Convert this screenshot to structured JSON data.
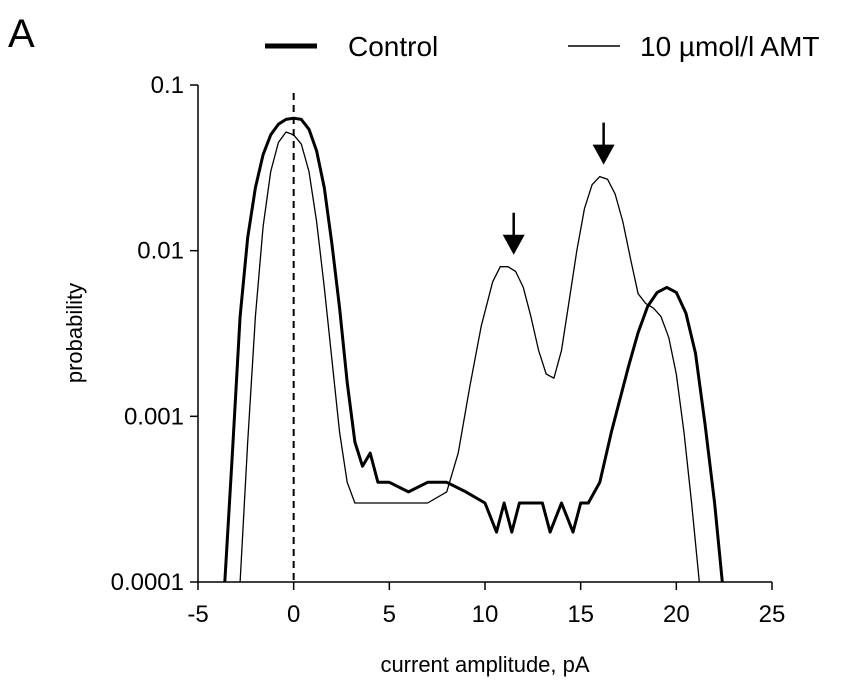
{
  "panel_label": "A",
  "chart_data": {
    "type": "line",
    "title": "",
    "xlabel": "current amplitude, pA",
    "ylabel": "probability",
    "xlim": [
      -5,
      25
    ],
    "ylim": [
      0.0001,
      0.1
    ],
    "y_scale": "log",
    "x_ticks": [
      -5,
      0,
      5,
      10,
      15,
      20,
      25
    ],
    "x_tick_labels": [
      "-5",
      "0",
      "5",
      "10",
      "15",
      "20",
      "25"
    ],
    "y_ticks": [
      0.0001,
      0.001,
      0.01,
      0.1
    ],
    "y_tick_labels": [
      "0.0001",
      "0.001",
      "0.01",
      "0.1"
    ],
    "grid": false,
    "legend_position": "top",
    "zero_line_x": 0,
    "arrows_at_x": [
      11.5,
      16.2
    ],
    "series": [
      {
        "name": "Control",
        "style": "thick",
        "color": "#000000",
        "x": [
          -3.6,
          -3.2,
          -2.8,
          -2.4,
          -2.0,
          -1.6,
          -1.2,
          -0.8,
          -0.4,
          0.0,
          0.4,
          0.8,
          1.2,
          1.6,
          2.0,
          2.4,
          2.8,
          3.2,
          3.6,
          4.0,
          4.4,
          5.0,
          6.0,
          7.0,
          8.0,
          9.0,
          10.0,
          10.6,
          11.0,
          11.4,
          11.8,
          12.2,
          13.0,
          13.4,
          14.0,
          14.6,
          15.0,
          15.4,
          16.0,
          16.6,
          17.0,
          17.5,
          18.0,
          18.5,
          19.0,
          19.5,
          20.0,
          20.5,
          21.0,
          21.5,
          22.0,
          22.4
        ],
        "values": [
          0.0001,
          0.0006,
          0.004,
          0.012,
          0.024,
          0.038,
          0.05,
          0.058,
          0.062,
          0.063,
          0.062,
          0.054,
          0.04,
          0.024,
          0.011,
          0.0045,
          0.0016,
          0.0007,
          0.0005,
          0.0006,
          0.0004,
          0.0004,
          0.00035,
          0.0004,
          0.0004,
          0.00035,
          0.0003,
          0.0002,
          0.0003,
          0.0002,
          0.0003,
          0.0003,
          0.0003,
          0.0002,
          0.0003,
          0.0002,
          0.0003,
          0.0003,
          0.0004,
          0.0008,
          0.0012,
          0.002,
          0.0032,
          0.0046,
          0.0056,
          0.006,
          0.0056,
          0.0042,
          0.0024,
          0.0009,
          0.0003,
          0.0001
        ]
      },
      {
        "name": "10 µmol/l AMT",
        "style": "thin",
        "color": "#000000",
        "x": [
          -2.8,
          -2.4,
          -2.0,
          -1.6,
          -1.2,
          -0.8,
          -0.4,
          0.0,
          0.4,
          0.8,
          1.2,
          1.6,
          2.0,
          2.4,
          2.8,
          3.2,
          3.6,
          4.0,
          5.0,
          6.0,
          7.0,
          8.0,
          8.6,
          9.2,
          9.8,
          10.4,
          10.8,
          11.2,
          11.6,
          12.0,
          12.4,
          12.8,
          13.2,
          13.6,
          14.0,
          14.4,
          14.8,
          15.2,
          15.6,
          16.0,
          16.4,
          16.8,
          17.2,
          17.6,
          18.0,
          18.4,
          18.8,
          19.2,
          19.6,
          20.0,
          20.4,
          20.8,
          21.2
        ],
        "values": [
          0.0001,
          0.0007,
          0.004,
          0.014,
          0.03,
          0.045,
          0.052,
          0.05,
          0.044,
          0.03,
          0.015,
          0.006,
          0.0022,
          0.0008,
          0.0004,
          0.0003,
          0.0003,
          0.0003,
          0.0003,
          0.0003,
          0.0003,
          0.00035,
          0.0006,
          0.0015,
          0.0035,
          0.0065,
          0.008,
          0.008,
          0.0075,
          0.006,
          0.004,
          0.0025,
          0.0018,
          0.0017,
          0.0025,
          0.005,
          0.01,
          0.018,
          0.025,
          0.028,
          0.027,
          0.022,
          0.015,
          0.009,
          0.0055,
          0.0048,
          0.0045,
          0.004,
          0.003,
          0.0018,
          0.0008,
          0.0003,
          0.0001
        ]
      }
    ]
  }
}
